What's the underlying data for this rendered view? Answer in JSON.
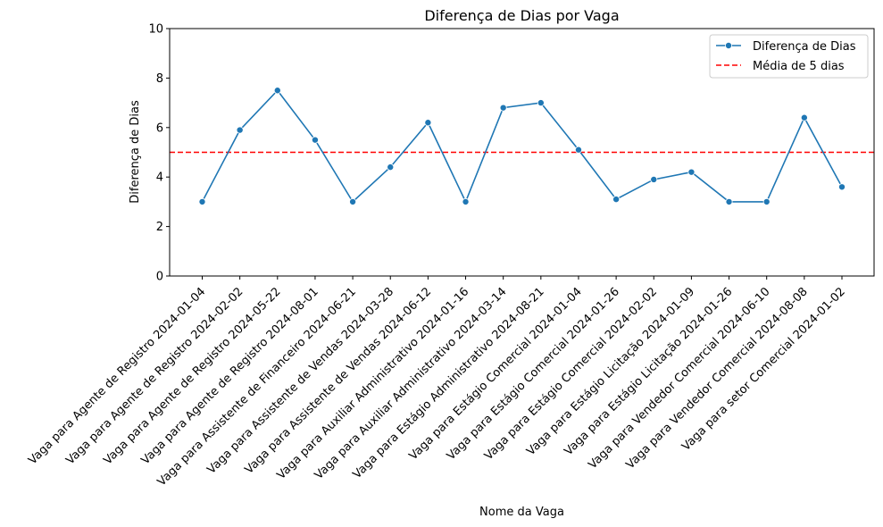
{
  "chart_data": {
    "type": "line",
    "title": "Diferença de Dias por Vaga",
    "xlabel": "Nome da Vaga",
    "ylabel": "Diferença de Dias",
    "ylim": [
      0,
      10
    ],
    "yticks": [
      0,
      2,
      4,
      6,
      8,
      10
    ],
    "categories": [
      "Vaga para Agente de Registro 2024-01-04",
      "Vaga para Agente de Registro 2024-02-02",
      "Vaga para Agente de Registro 2024-05-22",
      "Vaga para Agente de Registro 2024-08-01",
      "Vaga para Assistente de Financeiro 2024-06-21",
      "Vaga para Assistente de Vendas 2024-03-28",
      "Vaga para Assistente de Vendas 2024-06-12",
      "Vaga para Auxiliar Administrativo 2024-01-16",
      "Vaga para Auxiliar Administrativo 2024-03-14",
      "Vaga para Estágio Administrativo 2024-08-21",
      "Vaga para Estágio Comercial 2024-01-04",
      "Vaga para Estágio Comercial 2024-01-26",
      "Vaga para Estágio Comercial 2024-02-02",
      "Vaga para Estágio Licitação 2024-01-09",
      "Vaga para Estágio Licitação 2024-01-26",
      "Vaga para Vendedor Comercial 2024-06-10",
      "Vaga para Vendedor Comercial 2024-08-08",
      "Vaga para setor Comercial 2024-01-02"
    ],
    "series": [
      {
        "name": "Diferença de Dias",
        "color": "#1f77b4",
        "marker": "circle",
        "values": [
          3.0,
          5.9,
          7.5,
          5.5,
          3.0,
          4.4,
          6.2,
          3.0,
          6.8,
          7.0,
          5.1,
          3.1,
          3.9,
          4.2,
          3.0,
          3.0,
          6.4,
          3.6
        ]
      }
    ],
    "reference_line": {
      "name": "Média de 5 dias",
      "value": 5,
      "color": "#ff0000",
      "style": "dashed"
    },
    "legend_position": "top-right",
    "grid": false
  }
}
